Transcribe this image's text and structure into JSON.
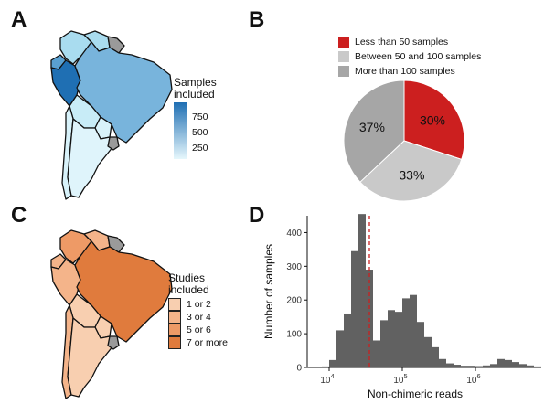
{
  "panels": {
    "a_label": "A",
    "b_label": "B",
    "c_label": "C",
    "d_label": "D"
  },
  "map_a": {
    "legend_title": "Samples\nincluded",
    "legend_ticks": [
      "750",
      "500",
      "250"
    ],
    "gradient_top": "#1f6fb3",
    "gradient_bottom": "#e6f7fc"
  },
  "map_c": {
    "legend_title": "Studies\nincluded",
    "categories": [
      {
        "label": "1 or 2",
        "color": "#f8cfb0"
      },
      {
        "label": "3 or 4",
        "color": "#f4b48a"
      },
      {
        "label": "5 or 6",
        "color": "#ee9a66"
      },
      {
        "label": "7 or more",
        "color": "#e07b3d"
      }
    ]
  },
  "chart_data": [
    {
      "type": "pie",
      "panel": "B",
      "legend": [
        {
          "label": "Less than 50 samples",
          "color": "#cc1f1f"
        },
        {
          "label": "Between 50 and 100 samples",
          "color": "#c9c9c9"
        },
        {
          "label": "More than 100 samples",
          "color": "#a6a6a6"
        }
      ],
      "slices": [
        {
          "label": "30%",
          "value": 30,
          "color": "#cc1f1f"
        },
        {
          "label": "33%",
          "value": 33,
          "color": "#c9c9c9"
        },
        {
          "label": "37%",
          "value": 37,
          "color": "#a6a6a6"
        }
      ]
    },
    {
      "type": "bar",
      "panel": "D",
      "title": "",
      "xlabel": "Non-chimeric reads",
      "ylabel": "Number of samples",
      "xscale": "log10",
      "xlim_log10": [
        3.7,
        6.9
      ],
      "ylim": [
        0,
        450
      ],
      "yticks": [
        0,
        100,
        200,
        300,
        400
      ],
      "xticks": [
        {
          "log10": 4,
          "base": "10",
          "exp": "4"
        },
        {
          "log10": 5,
          "base": "10",
          "exp": "5"
        },
        {
          "log10": 6,
          "base": "10",
          "exp": "6"
        }
      ],
      "median_log10": 4.55,
      "bar_color": "#616161",
      "median_color": "#cc1f1f",
      "bin_width_log10": 0.1,
      "bins_start_log10": 3.9,
      "values": [
        3,
        22,
        110,
        160,
        345,
        455,
        290,
        80,
        140,
        170,
        165,
        205,
        215,
        135,
        90,
        60,
        25,
        12,
        8,
        5,
        5,
        4,
        6,
        10,
        25,
        22,
        16,
        10,
        6,
        3,
        2,
        2
      ]
    }
  ]
}
